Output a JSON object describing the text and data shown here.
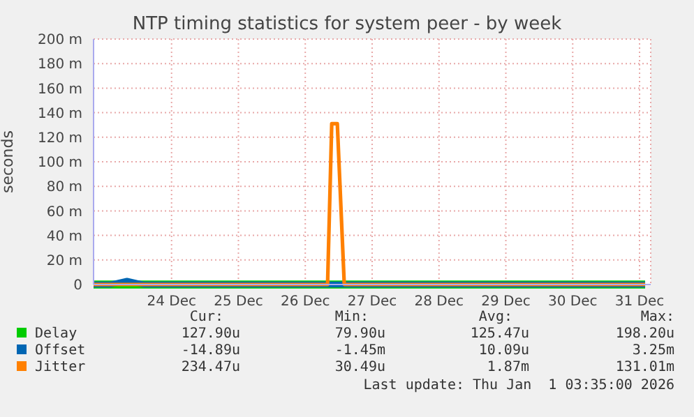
{
  "chart_data": {
    "type": "line",
    "title": "NTP timing statistics for system peer - by week",
    "ylabel": "seconds",
    "x": [
      "--12-23T08:00",
      "--12-23T14:00",
      "--12-23T20:00",
      "--12-24T02:00",
      "--12-24T08:00",
      "--12-24T14:00",
      "--12-24T20:00",
      "--12-25T02:00",
      "--12-25T08:00",
      "--12-25T14:00",
      "--12-25T20:00",
      "--12-26T02:00",
      "--12-26T08:00",
      "--12-26T14:00",
      "--12-26T20:00",
      "--12-26T21:30",
      "--12-26T23:30",
      "--12-27T02:00",
      "--12-27T08:00",
      "--12-27T14:00",
      "--12-27T20:00",
      "--12-28T02:00",
      "--12-28T08:00",
      "--12-28T14:00",
      "--12-28T20:00",
      "--12-29T02:00",
      "--12-29T08:00",
      "--12-29T14:00",
      "--12-29T20:00",
      "--12-30T02:00",
      "--12-30T08:00",
      "--12-30T14:00",
      "--12-30T20:00",
      "--12-31T02:00",
      "--12-31T08:00",
      "--12-31T14:00"
    ],
    "series": [
      {
        "name": "Delay",
        "color": "#00cc00",
        "values": [
          0,
          0,
          0,
          0,
          0,
          0,
          0,
          0,
          0,
          0,
          0,
          0,
          0,
          0,
          0,
          0,
          0,
          0,
          0,
          0,
          0,
          0,
          0,
          0,
          0,
          0,
          0,
          0,
          0,
          0,
          0,
          0,
          0,
          0,
          0,
          0
        ]
      },
      {
        "name": "Offset",
        "color": "#0066b3",
        "values": [
          0,
          0,
          3,
          0,
          0,
          0,
          0,
          0,
          0,
          0,
          0,
          0,
          0,
          0,
          0,
          0,
          0,
          0,
          0,
          0,
          0,
          0,
          0,
          0,
          0,
          0,
          0,
          0,
          0,
          0,
          0,
          0,
          0,
          0,
          0,
          0
        ]
      },
      {
        "name": "Jitter",
        "color": "#ff8000",
        "values": [
          0,
          0,
          0,
          0,
          0,
          0,
          0,
          0,
          0,
          0,
          0,
          0,
          0,
          0,
          0,
          131,
          131,
          0,
          0,
          0,
          0,
          0,
          0,
          0,
          0,
          0,
          0,
          0,
          0,
          0,
          0,
          0,
          0,
          0,
          0,
          0
        ]
      }
    ],
    "xlim": [
      "--12-23T08:00",
      "--12-31T16:00"
    ],
    "xticks": [
      {
        "value": "--12-24T12:00",
        "label": "24 Dec"
      },
      {
        "value": "--12-25T12:00",
        "label": "25 Dec"
      },
      {
        "value": "--12-26T12:00",
        "label": "26 Dec"
      },
      {
        "value": "--12-27T12:00",
        "label": "27 Dec"
      },
      {
        "value": "--12-28T12:00",
        "label": "28 Dec"
      },
      {
        "value": "--12-29T12:00",
        "label": "29 Dec"
      },
      {
        "value": "--12-30T12:00",
        "label": "30 Dec"
      },
      {
        "value": "--12-31T12:00",
        "label": "31 Dec"
      }
    ],
    "ylim": [
      0,
      200
    ],
    "yticks": [
      0,
      {
        "value": 20,
        "label": "20 m"
      },
      {
        "value": 40,
        "label": "40 m"
      },
      {
        "value": 60,
        "label": "60 m"
      },
      {
        "value": 80,
        "label": "80 m"
      },
      {
        "value": 100,
        "label": "100 m"
      },
      {
        "value": 120,
        "label": "120 m"
      },
      {
        "value": 140,
        "label": "140 m"
      },
      {
        "value": 160,
        "label": "160 m"
      },
      {
        "value": 180,
        "label": "180 m"
      },
      {
        "value": 200,
        "label": "200 m"
      }
    ],
    "grid": true,
    "legend": "bottom left",
    "marker": "none",
    "line_style": "solid",
    "annotations": [
      "Cur:",
      "Min:",
      "Avg:",
      "Max:",
      "127.90u",
      "79.90u",
      "125.47u",
      "198.20u",
      "-14.89u",
      "-1.45m",
      "10.09u",
      "3.25m",
      "234.47u",
      "30.49u",
      "1.87m",
      "131.01m",
      "Last update: Thu Jan  1 03:35:00 2026"
    ]
  }
}
